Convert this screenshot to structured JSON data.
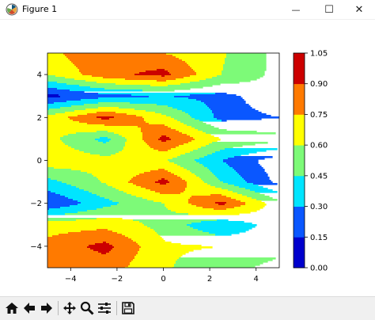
{
  "window": {
    "title": "Figure 1",
    "minimize_glyph": "—",
    "maximize_glyph": "☐",
    "close_glyph": "✕"
  },
  "toolbar": {
    "buttons": [
      {
        "name": "home-icon",
        "tooltip": "Reset original view"
      },
      {
        "name": "back-arrow-icon",
        "tooltip": "Back"
      },
      {
        "name": "forward-arrow-icon",
        "tooltip": "Forward"
      },
      {
        "name": "pan-move-icon",
        "tooltip": "Pan"
      },
      {
        "name": "zoom-magnifier-icon",
        "tooltip": "Zoom"
      },
      {
        "name": "subplots-config-icon",
        "tooltip": "Configure subplots"
      },
      {
        "name": "save-floppy-icon",
        "tooltip": "Save"
      }
    ]
  },
  "chart_data": {
    "type": "contourf",
    "colormap": "jet",
    "xlim": [
      -5,
      5
    ],
    "ylim": [
      -5,
      5
    ],
    "x_ticks": [
      -4,
      -2,
      0,
      2,
      4
    ],
    "y_ticks": [
      -4,
      -2,
      0,
      2,
      4
    ],
    "x_tick_labels": [
      "−4",
      "−2",
      "0",
      "2",
      "4"
    ],
    "y_tick_labels": [
      "−4",
      "−2",
      "0",
      "2",
      "4"
    ],
    "levels": [
      0.0,
      0.15,
      0.3,
      0.45,
      0.6,
      0.75,
      0.9,
      1.05
    ],
    "level_labels": [
      "0.00",
      "0.15",
      "0.30",
      "0.45",
      "0.60",
      "0.75",
      "0.90",
      "1.05"
    ],
    "level_colors": [
      "#0000cd",
      "#0a57ff",
      "#00e5ff",
      "#7dfa78",
      "#ffff00",
      "#ff7a00",
      "#cc0000"
    ],
    "grid_x": [
      -5,
      -2.5,
      0,
      2.5,
      5
    ],
    "grid_y": [
      -5,
      -4,
      -3,
      -2,
      -1,
      0,
      1,
      2,
      3,
      4,
      5
    ],
    "z": [
      [
        0.8,
        0.82,
        0.62,
        0.5,
        0.4
      ],
      [
        0.8,
        0.95,
        0.62,
        0.6,
        0.5
      ],
      [
        0.68,
        0.7,
        0.55,
        0.3,
        0.55
      ],
      [
        0.15,
        0.4,
        0.6,
        0.95,
        0.5
      ],
      [
        0.4,
        0.62,
        0.95,
        0.45,
        0.1
      ],
      [
        0.7,
        0.65,
        0.62,
        0.3,
        0.05
      ],
      [
        0.65,
        0.4,
        0.95,
        0.6,
        0.5
      ],
      [
        0.65,
        0.95,
        0.65,
        0.25,
        0.3
      ],
      [
        0.1,
        0.25,
        0.3,
        0.25,
        0.4
      ],
      [
        0.6,
        0.85,
        0.95,
        0.6,
        0.4
      ],
      [
        0.7,
        0.9,
        0.75,
        0.62,
        0.4
      ]
    ]
  }
}
